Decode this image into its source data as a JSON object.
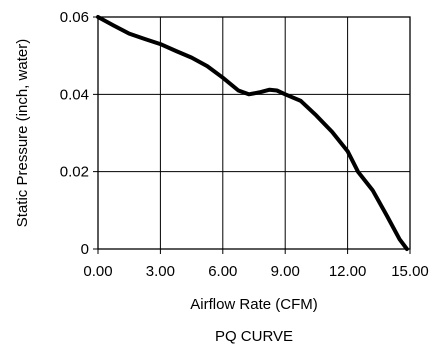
{
  "chart_data": {
    "type": "line",
    "title": "PQ CURVE",
    "xlabel": "Airflow Rate (CFM)",
    "ylabel": "Static Pressure (inch, water)",
    "xlim": [
      0,
      15
    ],
    "ylim": [
      0,
      0.06
    ],
    "grid": true,
    "x_ticks": [
      "0.00",
      "3.00",
      "6.00",
      "9.00",
      "12.00",
      "15.00"
    ],
    "x_tick_values": [
      0,
      3,
      6,
      9,
      12,
      15
    ],
    "y_ticks": [
      "0",
      "0.02",
      "0.04",
      "0.06"
    ],
    "y_tick_values": [
      0,
      0.02,
      0.04,
      0.06
    ],
    "line_color": "#000000",
    "series": [
      {
        "x": [
          0,
          0.75,
          1.5,
          2.25,
          3.0,
          3.75,
          4.5,
          5.25,
          6.0,
          6.75,
          7.25,
          7.75,
          8.25,
          8.6,
          9.0,
          9.75,
          10.5,
          11.25,
          12.0,
          12.5,
          13.2,
          13.9,
          14.5,
          14.85
        ],
        "y": [
          0.06,
          0.0578,
          0.0557,
          0.0543,
          0.053,
          0.0512,
          0.0495,
          0.0473,
          0.0443,
          0.041,
          0.04,
          0.0405,
          0.0412,
          0.041,
          0.04,
          0.0383,
          0.0345,
          0.0303,
          0.0253,
          0.02,
          0.0152,
          0.0085,
          0.0025,
          0.0
        ]
      }
    ]
  }
}
